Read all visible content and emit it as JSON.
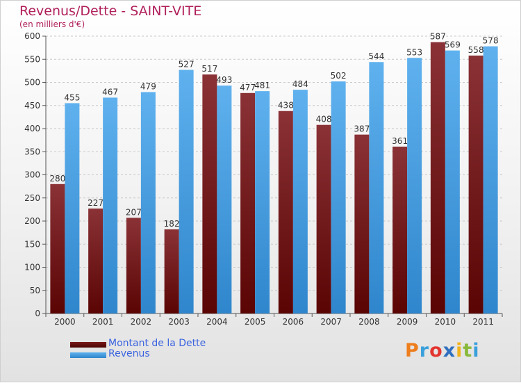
{
  "title": "Revenus/Dette - SAINT-VITE",
  "subtitle": "(en milliers d'€)",
  "legend": [
    {
      "label": "Montant de la Dette",
      "color": "#7a1a1a"
    },
    {
      "label": "Revenus",
      "color": "#4aa0e6"
    }
  ],
  "logo": {
    "letters": [
      "P",
      "r",
      "o",
      "x",
      "i",
      "t",
      "i"
    ],
    "colors": [
      "#ee7d1c",
      "#3aa0dc",
      "#e3342f",
      "#2f6fbf",
      "#f2b21a",
      "#89b93a",
      "#3aa0dc"
    ]
  },
  "chart_data": {
    "type": "bar",
    "categories": [
      "2000",
      "2001",
      "2002",
      "2003",
      "2004",
      "2005",
      "2006",
      "2007",
      "2008",
      "2009",
      "2010",
      "2011"
    ],
    "series": [
      {
        "name": "Montant de la Dette",
        "color": "#7a1a1a",
        "values": [
          280,
          227,
          207,
          182,
          517,
          477,
          438,
          408,
          387,
          361,
          587,
          558
        ]
      },
      {
        "name": "Revenus",
        "color": "#4aa0e6",
        "values": [
          455,
          467,
          479,
          527,
          493,
          481,
          484,
          502,
          544,
          553,
          569,
          578
        ]
      }
    ],
    "ylim": [
      0,
      600
    ],
    "yticks": [
      0,
      50,
      100,
      150,
      200,
      250,
      300,
      350,
      400,
      450,
      500,
      550,
      600
    ],
    "grid": true,
    "xlabel": "",
    "ylabel": ""
  }
}
